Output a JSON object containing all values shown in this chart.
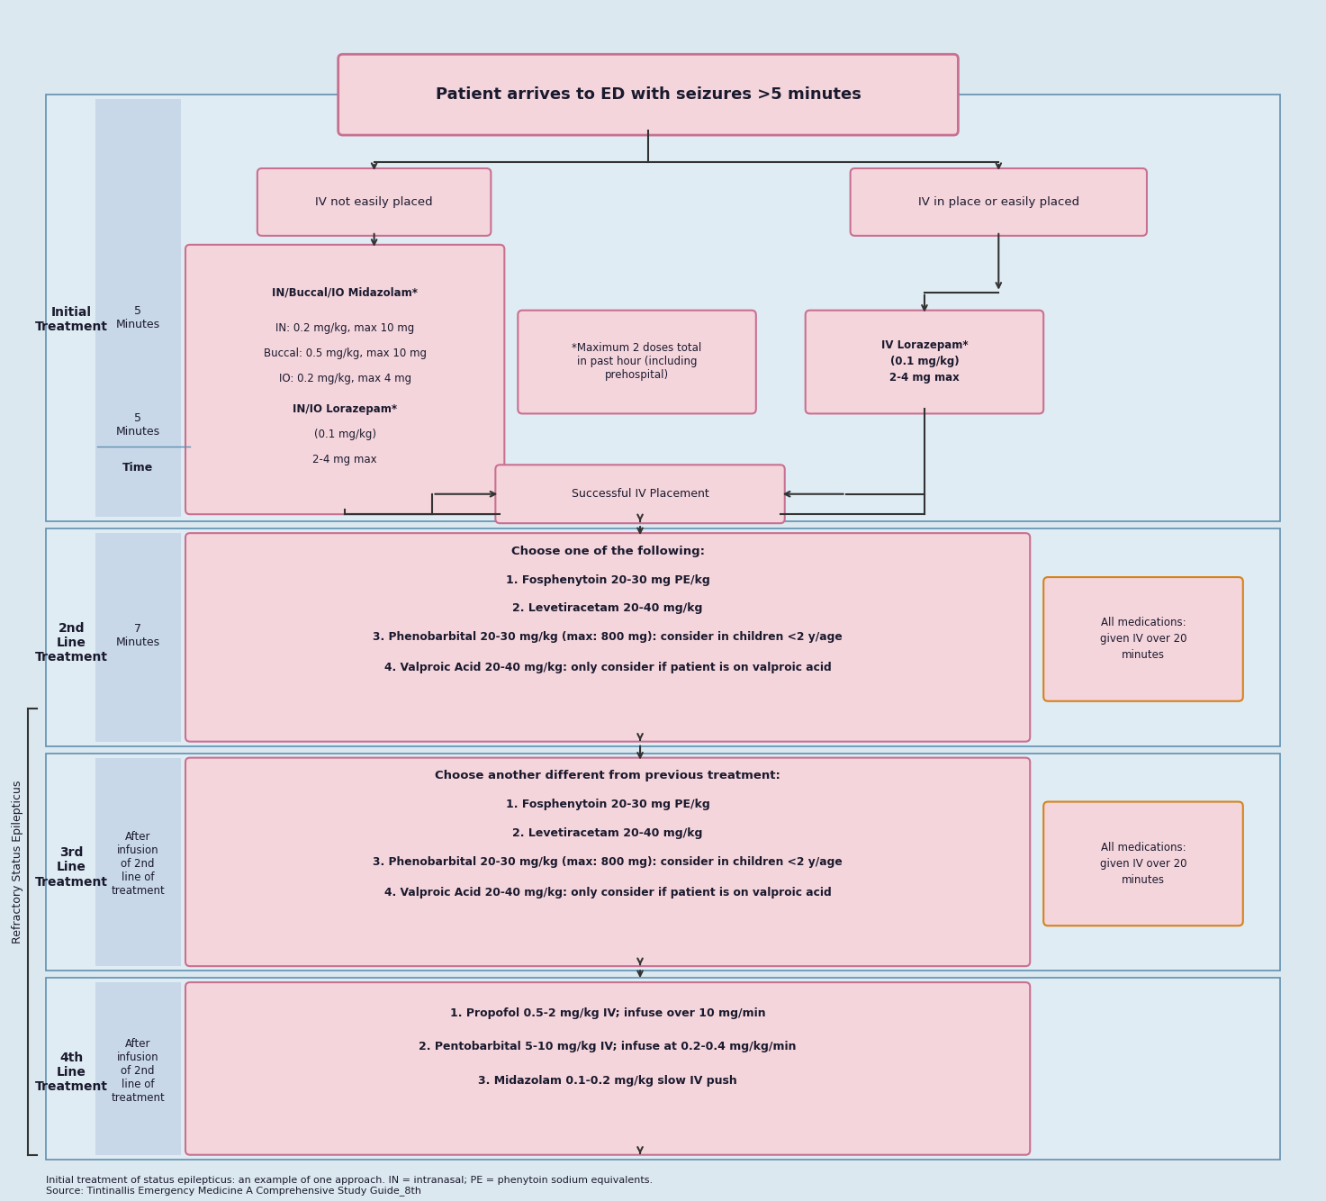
{
  "bg_color": "#dce8f0",
  "box_fill_pink": "#f5d5dc",
  "box_fill_light_pink": "#fce8ec",
  "box_border_pink": "#c87090",
  "box_border_orange": "#d4821a",
  "section_bg_blue": "#c8d8e8",
  "section_bg_light": "#e0ecf4",
  "text_dark": "#1a1a2e",
  "text_maroon": "#8b1a1a",
  "arrow_color": "#333333",
  "title_text": "Patient arrives to ED with seizures >5 minutes",
  "caption1": "Initial treatment of status epilepticus: an example of one approach. IN = intranasal; PE = phenytoin sodium equivalents.",
  "caption2": "Source: Tintinallis Emergency Medicine A Comprehensive Study Guide_8th"
}
